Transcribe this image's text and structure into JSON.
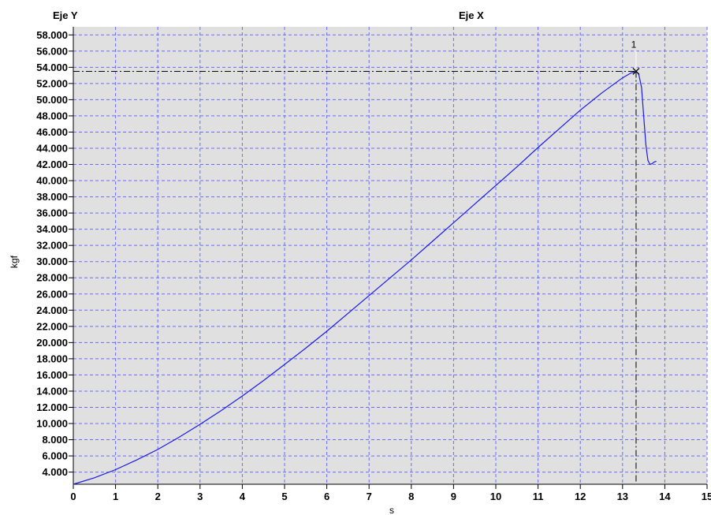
{
  "header": {
    "y_axis_title": "Eje Y",
    "x_axis_title": "Eje X"
  },
  "chart_data": {
    "type": "line",
    "xlabel": "s",
    "ylabel": "kgf",
    "xlim": [
      0,
      15
    ],
    "ylim": [
      2500,
      59000
    ],
    "x_ticks": [
      "0",
      "1",
      "2",
      "3",
      "4",
      "5",
      "6",
      "7",
      "8",
      "9",
      "10",
      "11",
      "12",
      "13",
      "14",
      "15"
    ],
    "y_ticks": [
      "4.000",
      "6.000",
      "8.000",
      "10.000",
      "12.000",
      "14.000",
      "16.000",
      "18.000",
      "20.000",
      "22.000",
      "24.000",
      "26.000",
      "28.000",
      "30.000",
      "32.000",
      "34.000",
      "36.000",
      "38.000",
      "40.000",
      "42.000",
      "44.000",
      "46.000",
      "48.000",
      "50.000",
      "52.000",
      "54.000",
      "56.000",
      "58.000"
    ],
    "y_tick_values": [
      4000,
      6000,
      8000,
      10000,
      12000,
      14000,
      16000,
      18000,
      20000,
      22000,
      24000,
      26000,
      28000,
      30000,
      32000,
      34000,
      36000,
      38000,
      40000,
      42000,
      44000,
      46000,
      48000,
      50000,
      52000,
      54000,
      56000,
      58000
    ],
    "grid": true,
    "series": [
      {
        "x": [
          0,
          0.5,
          1,
          1.5,
          2,
          2.5,
          3,
          3.5,
          4,
          4.5,
          5,
          5.5,
          6,
          6.5,
          7,
          7.5,
          8,
          8.5,
          9,
          9.5,
          10,
          10.5,
          11,
          11.5,
          12,
          12.5,
          13,
          13.2,
          13.32,
          13.38,
          13.45,
          13.5,
          13.55,
          13.6,
          13.65,
          13.7,
          13.75,
          13.8
        ],
        "y": [
          2500,
          3300,
          4300,
          5500,
          6800,
          8300,
          9900,
          11600,
          13400,
          15300,
          17300,
          19300,
          21400,
          23600,
          25800,
          28000,
          30200,
          32500,
          34800,
          37100,
          39400,
          41700,
          44100,
          46400,
          48700,
          50800,
          52700,
          53300,
          53500,
          53200,
          51500,
          48000,
          44500,
          42500,
          42000,
          42100,
          42300,
          42400
        ]
      }
    ],
    "marker": {
      "label": "1",
      "x": 13.32,
      "y": 53500
    },
    "colors": {
      "plot_background": "#e0e0e0",
      "grid": "#6a6aff",
      "series": "#1a1ae6",
      "crosshair": "#000000"
    }
  }
}
